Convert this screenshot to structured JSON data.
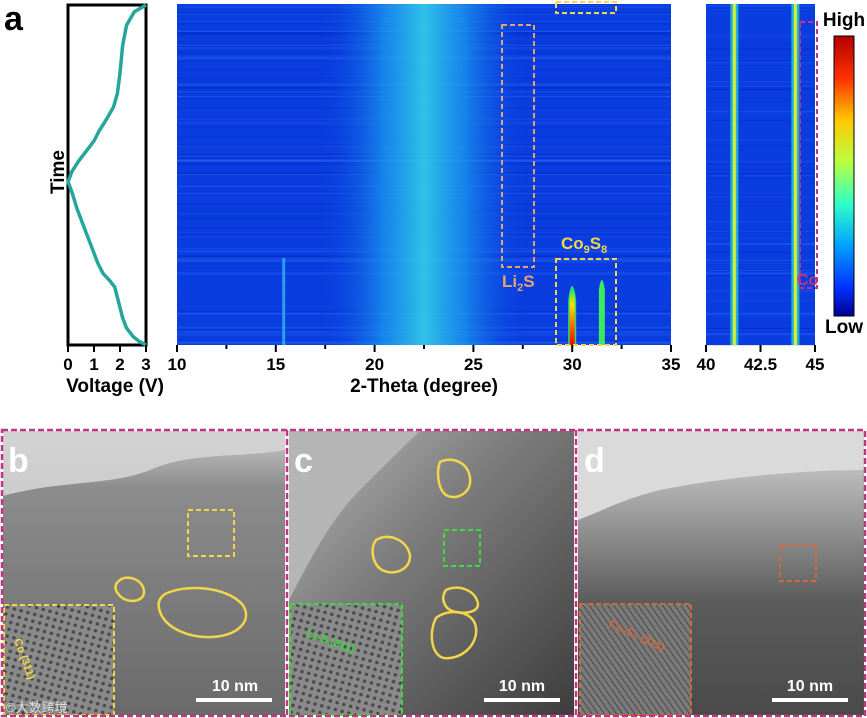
{
  "panel_letters": {
    "a": "a",
    "b": "b",
    "c": "c",
    "d": "d"
  },
  "voltage_panel": {
    "ylabel": "Time",
    "xlabel": "Voltage (V)",
    "ticks": [
      "0",
      "1",
      "2",
      "3"
    ]
  },
  "xrd_panel": {
    "xlabel": "2-Theta (degree)",
    "ticks": [
      "10",
      "15",
      "20",
      "25",
      "30",
      "35"
    ],
    "annotations": {
      "li2s": "Li",
      "li2s_sub": "2",
      "li2s_end": "S",
      "co9s8": "Co",
      "co9s8_sub1": "9",
      "co9s8_mid": "S",
      "co9s8_sub2": "8"
    }
  },
  "zoom_panel": {
    "ticks": [
      "40",
      "42.5",
      "45"
    ],
    "annotation": "Co"
  },
  "colorbar": {
    "high": "High",
    "low": "Low"
  },
  "tem": {
    "b": {
      "inset_label": "Co (311)",
      "scale": "10 nm"
    },
    "c": {
      "inset_label": "Li₂S (311)",
      "scale": "10 nm"
    },
    "d": {
      "inset_label": "Co₉S₈ (311)",
      "scale": "10 nm"
    }
  },
  "watermark": "©大数跨境",
  "colors": {
    "curve": "#26a69a",
    "frame_magenta": "#c2347f",
    "yellow_box": "#f3d54a",
    "orange_box": "#e3a46c",
    "green_box": "#3cdc3c",
    "d_box": "#d2693c",
    "heatmap_bg": "#0a3de0"
  },
  "chart_data": [
    {
      "type": "line",
      "xlabel": "Voltage (V)",
      "ylabel": "Time",
      "xlim": [
        0,
        3
      ],
      "ylim": [
        0,
        1
      ],
      "series": [
        {
          "x": [
            3.0,
            2.55,
            2.25,
            2.1,
            2.0,
            1.9,
            1.75,
            1.45,
            1.2,
            1.0,
            0.8,
            0.6,
            0.4,
            0.15,
            0.0,
            0.15,
            0.35,
            0.55,
            0.75,
            0.95,
            1.15,
            1.35,
            1.6,
            1.8,
            1.9,
            2.0,
            2.1,
            2.25,
            2.5,
            2.75,
            3.0
          ],
          "y": [
            0.0,
            0.02,
            0.06,
            0.12,
            0.2,
            0.26,
            0.3,
            0.34,
            0.37,
            0.4,
            0.42,
            0.44,
            0.46,
            0.49,
            0.52,
            0.55,
            0.6,
            0.64,
            0.68,
            0.72,
            0.76,
            0.79,
            0.81,
            0.83,
            0.86,
            0.89,
            0.92,
            0.95,
            0.975,
            0.99,
            1.0
          ]
        }
      ]
    },
    {
      "type": "heatmap",
      "xlabel": "2-Theta (degree)",
      "xlim": [
        10,
        35
      ],
      "features": [
        {
          "center": 22.5,
          "width": 2.2,
          "intensity": 0.45
        },
        {
          "center": 30.0,
          "width": 0.2,
          "intensity": 1.0
        },
        {
          "center": 31.5,
          "width": 0.15,
          "intensity": 0.65
        },
        {
          "center": 15.4,
          "width": 0.15,
          "intensity": 0.35
        }
      ]
    },
    {
      "type": "heatmap",
      "xlim": [
        40,
        45
      ],
      "features": [
        {
          "center": 41.3,
          "width": 0.1,
          "intensity": 0.75
        },
        {
          "center": 44.1,
          "width": 0.1,
          "intensity": 0.75
        }
      ]
    }
  ]
}
